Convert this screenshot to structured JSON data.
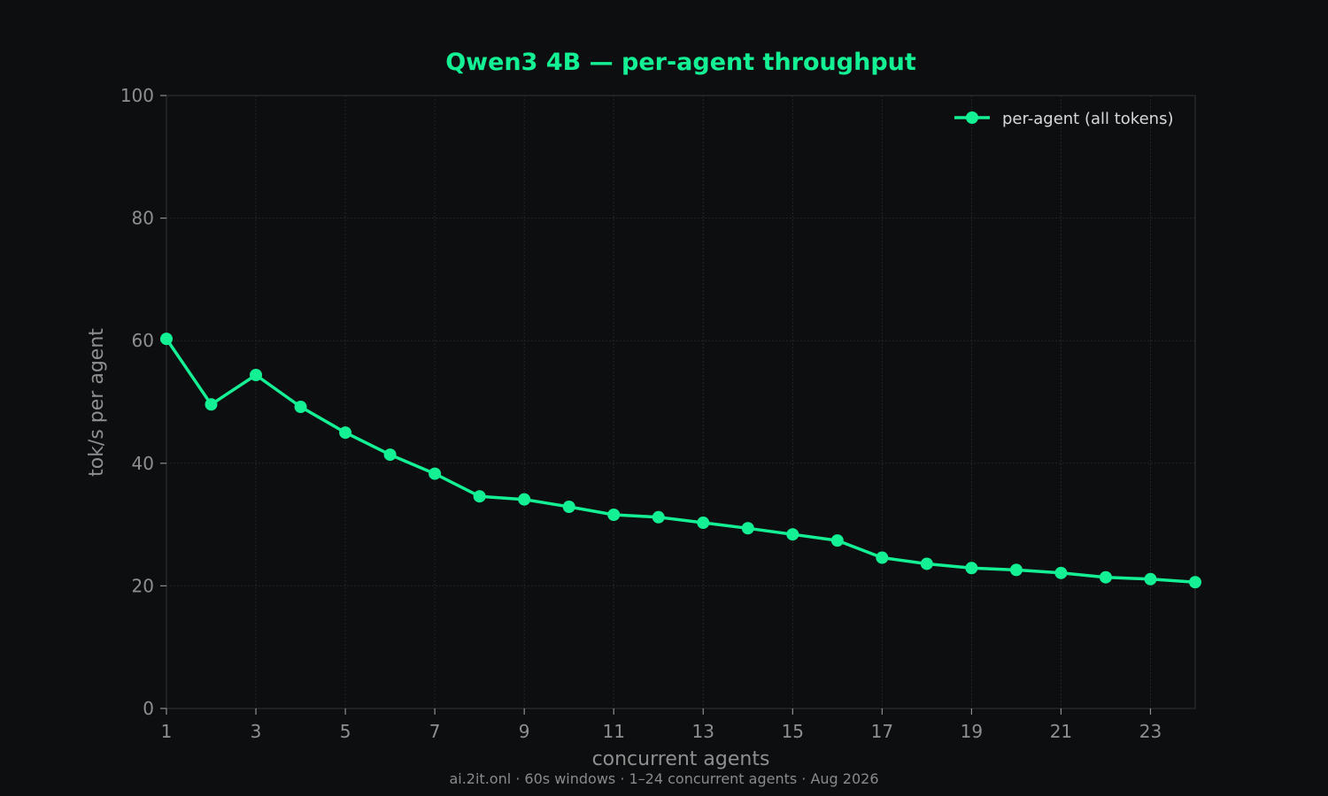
{
  "chart_data": {
    "type": "line",
    "title": "Qwen3 4B — per-agent throughput",
    "xlabel": "concurrent agents",
    "ylabel": "tok/s per agent",
    "xlim": [
      1,
      24
    ],
    "ylim": [
      0,
      100
    ],
    "xticks": [
      1,
      3,
      5,
      7,
      9,
      11,
      13,
      15,
      17,
      19,
      21,
      23
    ],
    "yticks": [
      0,
      20,
      40,
      60,
      80,
      100
    ],
    "grid": true,
    "legend_position": "top-right",
    "line_color": "#14f195",
    "series": [
      {
        "name": "per-agent (all tokens)",
        "x": [
          1,
          2,
          3,
          4,
          5,
          6,
          7,
          8,
          9,
          10,
          11,
          12,
          13,
          14,
          15,
          16,
          17,
          18,
          19,
          20,
          21,
          22,
          23,
          24
        ],
        "y": [
          60.3,
          49.6,
          54.4,
          49.2,
          45.0,
          41.4,
          38.3,
          34.6,
          34.1,
          32.9,
          31.6,
          31.2,
          30.3,
          29.4,
          28.4,
          27.4,
          24.6,
          23.6,
          22.9,
          22.6,
          22.1,
          21.4,
          21.1,
          20.6
        ]
      }
    ]
  },
  "footer": {
    "caption": "ai.2it.onl · 60s windows · 1–24 concurrent agents · Aug 2026"
  }
}
